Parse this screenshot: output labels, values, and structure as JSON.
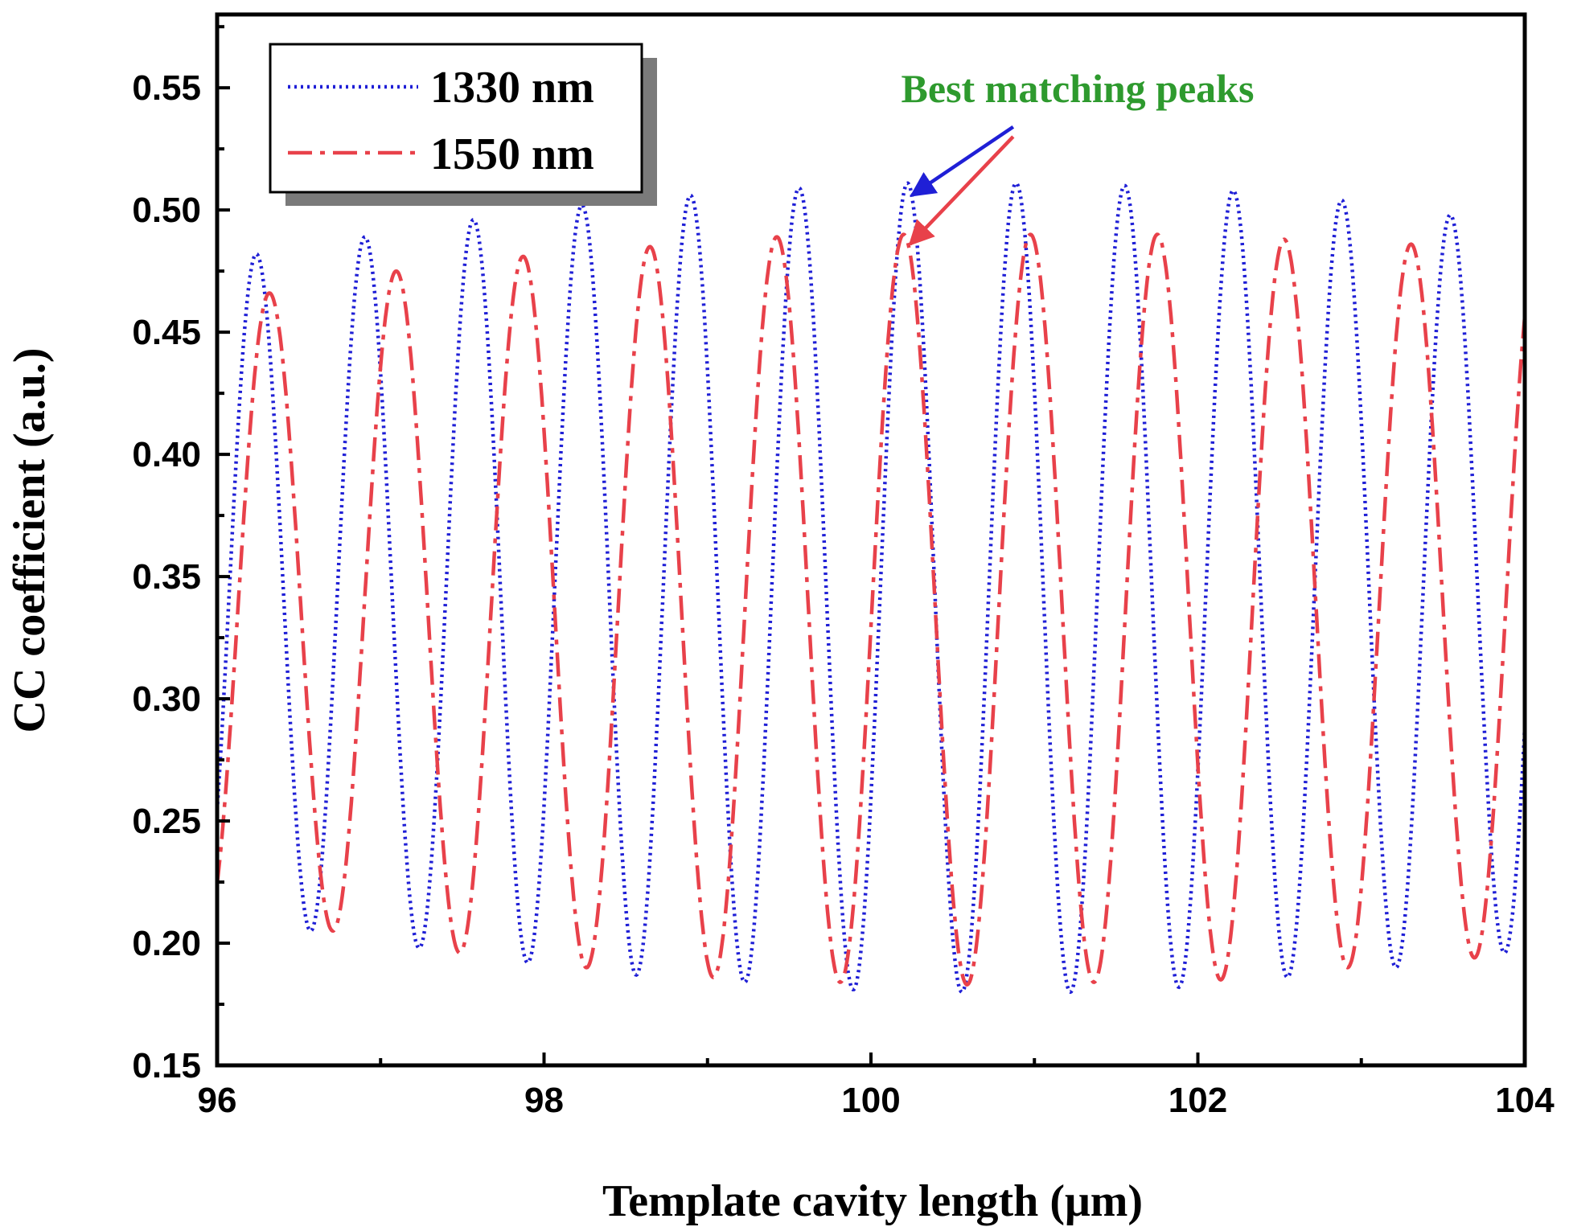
{
  "chart_data": {
    "type": "line",
    "xlabel": "Template cavity length (μm)",
    "ylabel": "CC coefficient (a.u.)",
    "xlim": [
      96,
      104
    ],
    "ylim": [
      0.15,
      0.58
    ],
    "xticks": [
      96,
      98,
      100,
      102,
      104
    ],
    "yticks": [
      0.15,
      0.2,
      0.25,
      0.3,
      0.35,
      0.4,
      0.45,
      0.5,
      0.55
    ],
    "ytick_labels": [
      "0.15",
      "0.20",
      "0.25",
      "0.30",
      "0.35",
      "0.40",
      "0.45",
      "0.50",
      "0.55"
    ],
    "grid": false,
    "legend": {
      "position": "top-left",
      "shadow": true
    },
    "series": [
      {
        "name": "1330 nm",
        "color": "#1f1fd6",
        "style": "dotted",
        "x0": 96.0,
        "period": 0.664,
        "peaks": [
          [
            96.24,
            0.482
          ],
          [
            96.9,
            0.489
          ],
          [
            97.57,
            0.496
          ],
          [
            98.23,
            0.502
          ],
          [
            98.9,
            0.506
          ],
          [
            99.57,
            0.509
          ],
          [
            100.23,
            0.511
          ],
          [
            100.89,
            0.511
          ],
          [
            101.56,
            0.51
          ],
          [
            102.22,
            0.508
          ],
          [
            102.89,
            0.504
          ],
          [
            103.56,
            0.498
          ]
        ],
        "troughs": [
          [
            96.57,
            0.205
          ],
          [
            97.23,
            0.198
          ],
          [
            97.89,
            0.192
          ],
          [
            98.56,
            0.187
          ],
          [
            99.23,
            0.184
          ],
          [
            99.89,
            0.181
          ],
          [
            100.56,
            0.18
          ],
          [
            101.22,
            0.18
          ],
          [
            101.89,
            0.182
          ],
          [
            102.56,
            0.186
          ],
          [
            103.23,
            0.19
          ],
          [
            103.89,
            0.196
          ]
        ]
      },
      {
        "name": "1550 nm",
        "color": "#e8414a",
        "style": "dash-dot",
        "x0": 96.0,
        "period": 0.776,
        "peaks": [
          [
            96.32,
            0.466
          ],
          [
            97.1,
            0.475
          ],
          [
            97.87,
            0.481
          ],
          [
            98.65,
            0.485
          ],
          [
            99.42,
            0.489
          ],
          [
            100.2,
            0.49
          ],
          [
            100.98,
            0.49
          ],
          [
            101.75,
            0.49
          ],
          [
            102.53,
            0.488
          ],
          [
            103.3,
            0.486
          ]
        ],
        "troughs": [
          [
            96.7,
            0.205
          ],
          [
            97.48,
            0.196
          ],
          [
            98.26,
            0.19
          ],
          [
            99.04,
            0.186
          ],
          [
            99.81,
            0.184
          ],
          [
            100.59,
            0.183
          ],
          [
            101.37,
            0.184
          ],
          [
            102.14,
            0.185
          ],
          [
            102.92,
            0.19
          ],
          [
            103.69,
            0.194
          ]
        ]
      }
    ],
    "annotations": [
      {
        "text": "Best matching peaks",
        "color": "#2e9a2e",
        "arrows": [
          {
            "color": "#1f1fd6",
            "from": [
              100.87,
              0.534
            ],
            "to": [
              100.25,
              0.506
            ]
          },
          {
            "color": "#e8414a",
            "from": [
              100.87,
              0.53
            ],
            "to": [
              100.24,
              0.486
            ]
          }
        ]
      }
    ]
  }
}
